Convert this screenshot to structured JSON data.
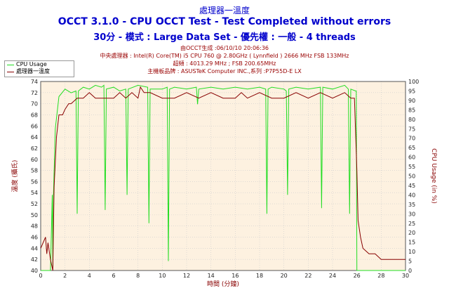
{
  "titles": {
    "top": "處理器一溫度",
    "main": "OCCT 3.1.0 - CPU OCCT Test - Test Completed without errors",
    "sub": "30分 - 模式 : Large Data Set - 優先權 : 一般 - 4 threads"
  },
  "info": {
    "generated": "由OCCT生成 :06/10/10 20:06:36",
    "cpu": "中央處理器 : Intel(R) Core(TM) i5 CPU 760 @ 2.80GHz ( Lynnfield ) 2666 MHz FSB 133MHz",
    "clock": "超頻 : 4013.29 MHz ; FSB 200.65MHz",
    "board": "主機板品牌 : ASUSTeK Computer INC.,系列 :P7P55D-E LX"
  },
  "colors": {
    "cpu_usage": "#22dd22",
    "temperature": "#880000",
    "plot_bg": "#fdf1e0",
    "grid": "#cccccc"
  },
  "chart_data": {
    "type": "line",
    "xlabel": "時間 (分鐘)",
    "ylabel_left": "溫度 (攝氏)",
    "ylabel_right": "CPU Usage (in %)",
    "xlim": [
      0,
      30
    ],
    "ylim_left": [
      40,
      74
    ],
    "ylim_right": [
      0,
      100
    ],
    "x_ticks": [
      0,
      2,
      4,
      6,
      8,
      10,
      12,
      14,
      16,
      18,
      20,
      22,
      24,
      26,
      28,
      30
    ],
    "y_ticks_left": [
      40,
      42,
      44,
      46,
      48,
      50,
      52,
      54,
      56,
      58,
      60,
      62,
      64,
      66,
      68,
      70,
      72,
      74
    ],
    "y_ticks_right": [
      0,
      5,
      10,
      15,
      20,
      25,
      30,
      35,
      40,
      45,
      50,
      55,
      60,
      65,
      70,
      75,
      80,
      85,
      90,
      95,
      100
    ],
    "grid": true,
    "legend_position": "top-left",
    "series": [
      {
        "name": "CPU Usage",
        "axis": "right",
        "x": [
          0,
          0.8,
          0.95,
          1.0,
          1.05,
          1.2,
          1.5,
          2.0,
          2.5,
          2.9,
          3.0,
          3.1,
          3.5,
          4.0,
          4.5,
          5.0,
          5.2,
          5.3,
          5.4,
          6.0,
          6.5,
          7.0,
          7.1,
          7.2,
          8.0,
          8.8,
          8.9,
          9.0,
          10.0,
          10.4,
          10.5,
          10.6,
          11.0,
          12.0,
          12.8,
          12.9,
          13.0,
          14.0,
          15.0,
          16.0,
          17.0,
          18.0,
          18.5,
          18.6,
          18.7,
          19.0,
          20.0,
          20.2,
          20.3,
          20.4,
          21.0,
          22.0,
          23.0,
          23.1,
          23.2,
          24.0,
          25.0,
          25.3,
          25.4,
          25.5,
          25.9,
          25.95,
          26.0,
          26.05,
          30
        ],
        "values": [
          0,
          0,
          40,
          2,
          40,
          75,
          92,
          96,
          94,
          95,
          30,
          95,
          97,
          96,
          98,
          97,
          98,
          32,
          96,
          97,
          95,
          96,
          40,
          96,
          98,
          97,
          25,
          96,
          96,
          97,
          5,
          96,
          97,
          96,
          97,
          88,
          96,
          97,
          96,
          97,
          96,
          97,
          96,
          30,
          96,
          97,
          96,
          95,
          40,
          96,
          97,
          96,
          97,
          33,
          97,
          96,
          98,
          96,
          30,
          96,
          95,
          95,
          0,
          0,
          0
        ]
      },
      {
        "name": "處理器一溫度",
        "axis": "left",
        "x": [
          0,
          0.4,
          0.5,
          0.6,
          0.8,
          0.9,
          1.0,
          1.1,
          1.3,
          1.5,
          1.8,
          2.0,
          2.3,
          2.5,
          3.0,
          3.5,
          4.0,
          4.5,
          5.0,
          6.0,
          6.5,
          7.0,
          7.5,
          8.0,
          8.2,
          8.5,
          9.0,
          10.0,
          11.0,
          12.0,
          13.0,
          14.0,
          15.0,
          16.0,
          16.5,
          17.0,
          18.0,
          19.0,
          20.0,
          21.0,
          22.0,
          23.0,
          24.0,
          25.0,
          25.5,
          25.8,
          26.0,
          26.1,
          26.3,
          26.5,
          27.0,
          27.5,
          28.0,
          28.5,
          29.0,
          29.5,
          30.0
        ],
        "values": [
          44,
          46,
          43,
          45,
          42,
          41,
          40,
          55,
          64,
          68,
          68,
          69,
          70,
          70,
          71,
          71,
          72,
          71,
          71,
          71,
          72,
          71,
          72,
          71,
          73,
          72,
          72,
          71,
          71,
          72,
          71,
          72,
          71,
          71,
          72,
          71,
          72,
          71,
          71,
          72,
          71,
          72,
          71,
          72,
          71,
          71,
          58,
          49,
          46,
          44,
          43,
          43,
          42,
          42,
          42,
          42,
          42
        ]
      }
    ]
  }
}
